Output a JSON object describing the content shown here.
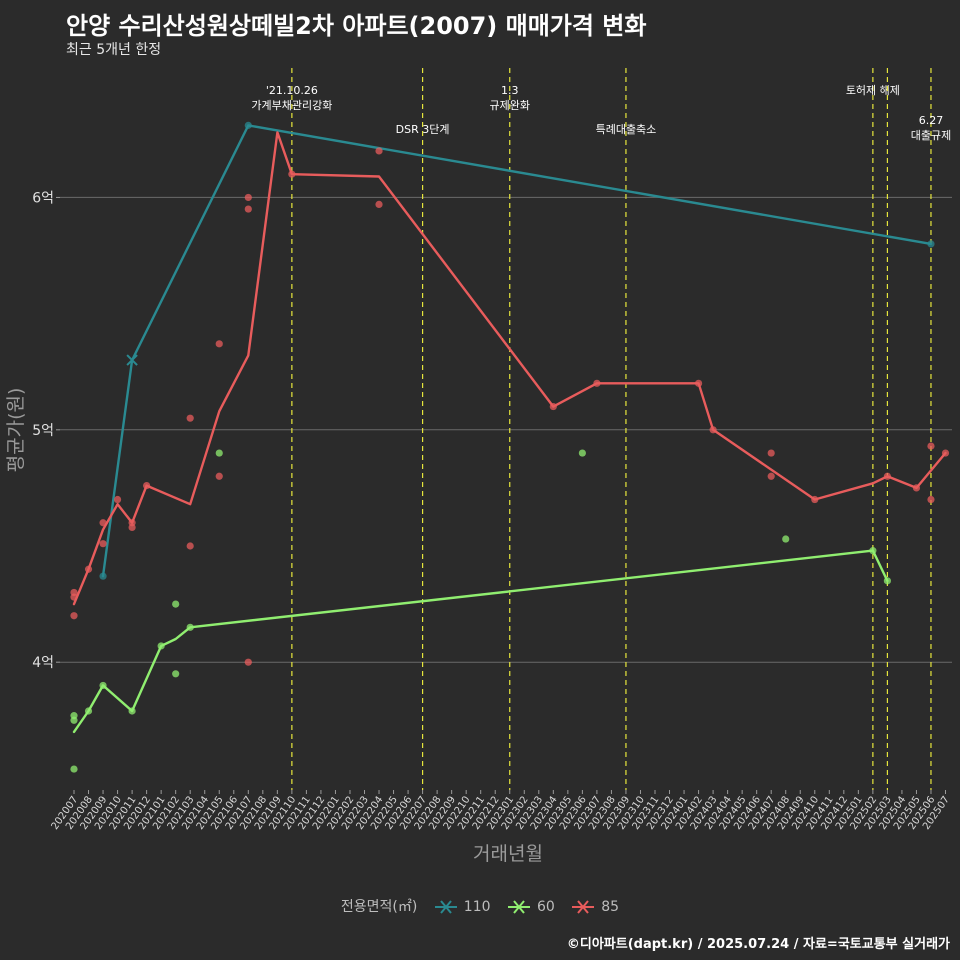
{
  "title": "안양 수리산성원상떼빌2차 아파트(2007) 매매가격 변화",
  "subtitle": "최근 5개년 한정",
  "caption": "©디아파트(dapt.kr) / 2025.07.24 / 자료=국토교통부 실거래가",
  "colors": {
    "background": "#2b2b2b",
    "s110": "#2a8a91",
    "s60": "#90ee70",
    "s85": "#e85c5c",
    "vline": "#e6e63c",
    "grid": "#6b6b6b"
  },
  "chart_data": {
    "type": "line",
    "xlabel": "거래년월",
    "ylabel": "평균가(원)",
    "x_ticks": [
      "202007",
      "202008",
      "202009",
      "202010",
      "202011",
      "202012",
      "202101",
      "202102",
      "202103",
      "202104",
      "202105",
      "202106",
      "202107",
      "202108",
      "202109",
      "202110",
      "202111",
      "202112",
      "202201",
      "202202",
      "202203",
      "202204",
      "202205",
      "202206",
      "202207",
      "202208",
      "202209",
      "202210",
      "202211",
      "202212",
      "202301",
      "202302",
      "202303",
      "202304",
      "202305",
      "202306",
      "202307",
      "202308",
      "202309",
      "202310",
      "202311",
      "202312",
      "202401",
      "202402",
      "202403",
      "202404",
      "202405",
      "202406",
      "202407",
      "202408",
      "202409",
      "202410",
      "202411",
      "202412",
      "202501",
      "202502",
      "202503",
      "202504",
      "202505",
      "202506",
      "202507"
    ],
    "y_ticks": [
      {
        "value": 4.0,
        "label": "4억"
      },
      {
        "value": 5.0,
        "label": "5억"
      },
      {
        "value": 6.0,
        "label": "6억"
      }
    ],
    "ylim": [
      3.45,
      6.6
    ],
    "grid": "horizontal",
    "legend": {
      "title": "전용면적(㎡)",
      "position": "bottom",
      "entries": [
        "110",
        "60",
        "85"
      ]
    },
    "series": [
      {
        "name": "110",
        "color": "#2a8a91",
        "line": [
          [
            "202009",
            4.37
          ],
          [
            "202011",
            5.3
          ],
          [
            "202107",
            6.31
          ],
          [
            "202506",
            5.8
          ]
        ],
        "points": [
          [
            "202009",
            4.37
          ],
          [
            "202107",
            6.31
          ],
          [
            "202506",
            5.8
          ]
        ],
        "cross_points": [
          [
            "202011",
            5.3
          ]
        ]
      },
      {
        "name": "60",
        "color": "#90ee70",
        "line": [
          [
            "202007",
            3.7
          ],
          [
            "202008",
            3.79
          ],
          [
            "202009",
            3.9
          ],
          [
            "202011",
            3.79
          ],
          [
            "202101",
            4.07
          ],
          [
            "202102",
            4.1
          ],
          [
            "202103",
            4.15
          ],
          [
            "202502",
            4.48
          ],
          [
            "202503",
            4.35
          ]
        ],
        "points": [
          [
            "202007",
            3.77
          ],
          [
            "202007",
            3.75
          ],
          [
            "202007",
            3.54
          ],
          [
            "202008",
            3.79
          ],
          [
            "202009",
            3.9
          ],
          [
            "202011",
            3.79
          ],
          [
            "202101",
            4.07
          ],
          [
            "202102",
            4.25
          ],
          [
            "202102",
            3.95
          ],
          [
            "202103",
            4.15
          ],
          [
            "202105",
            4.9
          ],
          [
            "202306",
            4.9
          ],
          [
            "202408",
            4.53
          ],
          [
            "202502",
            4.48
          ],
          [
            "202503",
            4.35
          ]
        ],
        "cross_points": []
      },
      {
        "name": "85",
        "color": "#e85c5c",
        "line": [
          [
            "202007",
            4.25
          ],
          [
            "202008",
            4.4
          ],
          [
            "202009",
            4.57
          ],
          [
            "202010",
            4.68
          ],
          [
            "202011",
            4.6
          ],
          [
            "202012",
            4.76
          ],
          [
            "202103",
            4.68
          ],
          [
            "202105",
            5.08
          ],
          [
            "202107",
            5.32
          ],
          [
            "202109",
            6.28
          ],
          [
            "202110",
            6.1
          ],
          [
            "202204",
            6.09
          ],
          [
            "202304",
            5.1
          ],
          [
            "202307",
            5.2
          ],
          [
            "202402",
            5.2
          ],
          [
            "202403",
            5.0
          ],
          [
            "202410",
            4.7
          ],
          [
            "202502",
            4.77
          ],
          [
            "202503",
            4.8
          ],
          [
            "202505",
            4.75
          ],
          [
            "202507",
            4.9
          ]
        ],
        "points": [
          [
            "202007",
            4.3
          ],
          [
            "202007",
            4.28
          ],
          [
            "202007",
            4.2
          ],
          [
            "202008",
            4.4
          ],
          [
            "202009",
            4.6
          ],
          [
            "202009",
            4.51
          ],
          [
            "202010",
            4.7
          ],
          [
            "202011",
            4.6
          ],
          [
            "202011",
            4.58
          ],
          [
            "202012",
            4.76
          ],
          [
            "202103",
            5.05
          ],
          [
            "202103",
            4.5
          ],
          [
            "202105",
            5.37
          ],
          [
            "202105",
            4.8
          ],
          [
            "202107",
            6.0
          ],
          [
            "202107",
            5.95
          ],
          [
            "202107",
            4.0
          ],
          [
            "202110",
            6.1
          ],
          [
            "202204",
            6.2
          ],
          [
            "202204",
            5.97
          ],
          [
            "202304",
            5.1
          ],
          [
            "202307",
            5.2
          ],
          [
            "202402",
            5.2
          ],
          [
            "202403",
            5.0
          ],
          [
            "202407",
            4.9
          ],
          [
            "202407",
            4.8
          ],
          [
            "202410",
            4.7
          ],
          [
            "202503",
            4.8
          ],
          [
            "202505",
            4.75
          ],
          [
            "202506",
            4.93
          ],
          [
            "202506",
            4.7
          ],
          [
            "202507",
            4.9
          ]
        ],
        "cross_points": []
      }
    ],
    "annotations": [
      {
        "x": "202110",
        "lines": [
          "'21.10.26",
          "가계부채관리강화"
        ],
        "level": 1
      },
      {
        "x": "202207",
        "lines": [
          "DSR 3단계"
        ],
        "level": 2
      },
      {
        "x": "202301",
        "lines": [
          "1.3",
          "규제완화"
        ],
        "level": 1
      },
      {
        "x": "202309",
        "lines": [
          "특례대출축소"
        ],
        "level": 2
      },
      {
        "x": "202502",
        "lines": [
          "토허제 해제"
        ],
        "level": 1
      },
      {
        "x": "202503",
        "lines": [],
        "level": 1
      },
      {
        "x": "202506",
        "lines": [
          "6.27",
          "대출규제"
        ],
        "level": 3
      }
    ]
  }
}
